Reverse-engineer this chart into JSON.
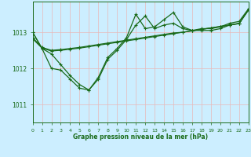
{
  "title": "Graphe pression niveau de la mer (hPa)",
  "bg_color": "#cceeff",
  "grid_color": "#e8b8b8",
  "line_color": "#1a6b1a",
  "xlim": [
    0,
    23
  ],
  "ylim": [
    1010.5,
    1013.85
  ],
  "yticks": [
    1011,
    1012,
    1013
  ],
  "xticks": [
    0,
    1,
    2,
    3,
    4,
    5,
    6,
    7,
    8,
    9,
    10,
    11,
    12,
    13,
    14,
    15,
    16,
    17,
    18,
    19,
    20,
    21,
    22,
    23
  ],
  "series": {
    "line_volatile": [
      1013.0,
      1012.55,
      1012.0,
      1011.95,
      1011.7,
      1011.45,
      1011.4,
      1011.75,
      1012.3,
      1012.55,
      1012.85,
      1013.5,
      1013.1,
      1013.15,
      1013.35,
      1013.55,
      1013.15,
      1013.05,
      1013.1,
      1013.1,
      1013.15,
      1013.25,
      1013.3,
      1013.65
    ],
    "line_trend1": [
      1012.85,
      1012.58,
      1012.5,
      1012.52,
      1012.55,
      1012.58,
      1012.62,
      1012.66,
      1012.7,
      1012.74,
      1012.78,
      1012.82,
      1012.86,
      1012.9,
      1012.94,
      1012.98,
      1013.0,
      1013.04,
      1013.08,
      1013.12,
      1013.16,
      1013.2,
      1013.24,
      1013.62
    ],
    "line_trend2": [
      1012.82,
      1012.56,
      1012.48,
      1012.5,
      1012.53,
      1012.56,
      1012.6,
      1012.64,
      1012.68,
      1012.72,
      1012.76,
      1012.8,
      1012.84,
      1012.88,
      1012.92,
      1012.96,
      1013.0,
      1013.04,
      1013.08,
      1013.12,
      1013.16,
      1013.2,
      1013.24,
      1013.62
    ],
    "line_main": [
      1013.0,
      1012.55,
      1012.4,
      1012.1,
      1011.8,
      1011.55,
      1011.4,
      1011.7,
      1012.25,
      1012.5,
      1012.8,
      1013.2,
      1013.45,
      1013.1,
      1013.2,
      1013.25,
      1013.1,
      1013.05,
      1013.05,
      1013.05,
      1013.1,
      1013.2,
      1013.25,
      1013.62
    ]
  }
}
